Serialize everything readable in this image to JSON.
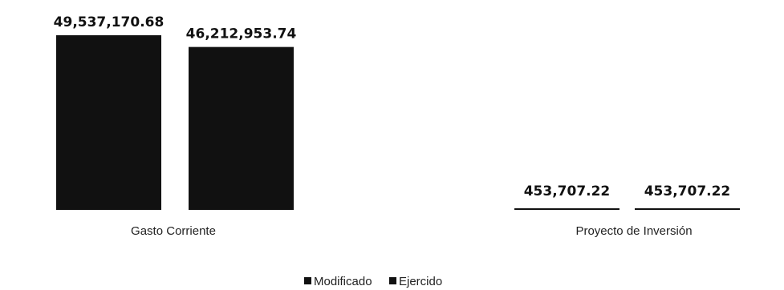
{
  "chart_data": {
    "type": "bar",
    "categories": [
      "Gasto Corriente",
      "Proyecto de  Inversión"
    ],
    "series": [
      {
        "name": "Modificado",
        "values": [
          49537170.68,
          453707.22
        ],
        "color": "#111111"
      },
      {
        "name": "Ejercido",
        "values": [
          46212953.74,
          453707.22
        ],
        "color": "#111111"
      }
    ],
    "data_labels": [
      [
        "49,537,170.68",
        "453,707.22"
      ],
      [
        "46,212,953.74",
        "453,707.22"
      ]
    ],
    "ylim": [
      0,
      49537170.68
    ],
    "grid": false,
    "legend_position": "bottom"
  }
}
